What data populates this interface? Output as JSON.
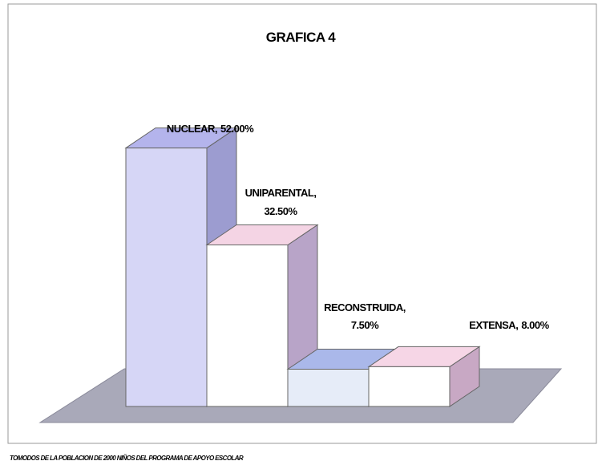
{
  "chart_data": {
    "type": "bar3d",
    "title": "GRAFICA 4",
    "categories": [
      "NUCLEAR",
      "UNIPARENTAL",
      "RECONSTRUIDA",
      "EXTENSA"
    ],
    "values": [
      52,
      32.5,
      7.5,
      8
    ],
    "value_labels": [
      "52.00%",
      "32.50%",
      "7.50%",
      "8.00%"
    ],
    "colors": [
      "#d6d6f6",
      "#ffffff",
      "#e6ecf8",
      "#ffffff"
    ],
    "top_colors": [
      "#b4b4ec",
      "#f4d4e4",
      "#aab8ea",
      "#f6d6e6"
    ],
    "side_colors": [
      "#9c9cd0",
      "#b8a4c8",
      "#a0a8d8",
      "#c8a8c4"
    ],
    "note": "TOMODOS DE LA POBLACION DE 2000 NIÑOS DEL PROGRAMA DE APOYO ESCOLAR"
  }
}
